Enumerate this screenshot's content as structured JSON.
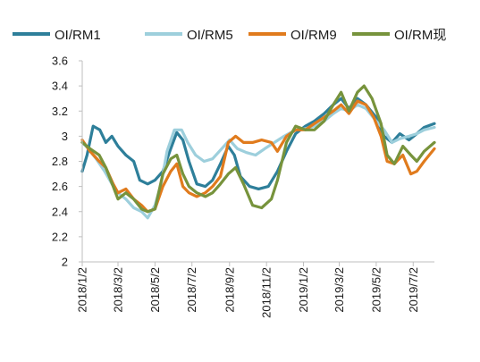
{
  "chart_data": {
    "type": "line",
    "title": "",
    "xlabel": "",
    "ylabel": "",
    "ylim": [
      2,
      3.6
    ],
    "yticks": [
      "2",
      "2.2",
      "2.4",
      "2.6",
      "2.8",
      "3",
      "3.2",
      "3.4",
      "3.6"
    ],
    "x_range": [
      "2018-01-02",
      "2019-08-06"
    ],
    "xticks": [
      {
        "label": "2018/1/2",
        "date": "2018-01-02"
      },
      {
        "label": "2018/3/2",
        "date": "2018-03-02"
      },
      {
        "label": "2018/5/2",
        "date": "2018-05-02"
      },
      {
        "label": "2018/7/2",
        "date": "2018-07-02"
      },
      {
        "label": "2018/9/2",
        "date": "2018-09-02"
      },
      {
        "label": "2018/11/2",
        "date": "2018-11-02"
      },
      {
        "label": "2019/1/2",
        "date": "2019-01-02"
      },
      {
        "label": "2019/3/2",
        "date": "2019-03-02"
      },
      {
        "label": "2019/5/2",
        "date": "2019-05-02"
      },
      {
        "label": "2019/7/2",
        "date": "2019-07-02"
      }
    ],
    "grid": false,
    "legend_position": "top",
    "series": [
      {
        "name": "OI/RM1",
        "color": "#2e7f9a",
        "points": [
          [
            "2018-01-02",
            2.72
          ],
          [
            "2018-01-10",
            2.85
          ],
          [
            "2018-01-20",
            3.08
          ],
          [
            "2018-01-31",
            3.05
          ],
          [
            "2018-02-10",
            2.95
          ],
          [
            "2018-02-20",
            3.0
          ],
          [
            "2018-03-02",
            2.92
          ],
          [
            "2018-03-15",
            2.85
          ],
          [
            "2018-03-28",
            2.8
          ],
          [
            "2018-04-07",
            2.65
          ],
          [
            "2018-04-20",
            2.62
          ],
          [
            "2018-05-02",
            2.65
          ],
          [
            "2018-05-15",
            2.72
          ],
          [
            "2018-05-28",
            2.9
          ],
          [
            "2018-06-07",
            3.03
          ],
          [
            "2018-06-17",
            2.97
          ],
          [
            "2018-06-27",
            2.8
          ],
          [
            "2018-07-10",
            2.62
          ],
          [
            "2018-07-24",
            2.6
          ],
          [
            "2018-08-05",
            2.65
          ],
          [
            "2018-08-18",
            2.78
          ],
          [
            "2018-08-31",
            2.92
          ],
          [
            "2018-09-10",
            2.85
          ],
          [
            "2018-09-20",
            2.68
          ],
          [
            "2018-10-05",
            2.6
          ],
          [
            "2018-10-20",
            2.58
          ],
          [
            "2018-11-05",
            2.6
          ],
          [
            "2018-11-20",
            2.72
          ],
          [
            "2018-12-05",
            2.88
          ],
          [
            "2018-12-20",
            3.02
          ],
          [
            "2019-01-05",
            3.08
          ],
          [
            "2019-01-20",
            3.12
          ],
          [
            "2019-02-05",
            3.18
          ],
          [
            "2019-02-20",
            3.25
          ],
          [
            "2019-03-05",
            3.3
          ],
          [
            "2019-03-18",
            3.22
          ],
          [
            "2019-04-01",
            3.3
          ],
          [
            "2019-04-15",
            3.25
          ],
          [
            "2019-05-02",
            3.15
          ],
          [
            "2019-05-15",
            3.0
          ],
          [
            "2019-05-28",
            2.95
          ],
          [
            "2019-06-10",
            3.02
          ],
          [
            "2019-06-25",
            2.97
          ],
          [
            "2019-07-08",
            3.02
          ],
          [
            "2019-07-20",
            3.07
          ],
          [
            "2019-08-06",
            3.1
          ]
        ]
      },
      {
        "name": "OI/RM5",
        "color": "#9dcfdc",
        "points": [
          [
            "2018-01-02",
            2.95
          ],
          [
            "2018-01-12",
            2.9
          ],
          [
            "2018-01-25",
            2.82
          ],
          [
            "2018-02-08",
            2.72
          ],
          [
            "2018-02-20",
            2.62
          ],
          [
            "2018-03-02",
            2.55
          ],
          [
            "2018-03-15",
            2.5
          ],
          [
            "2018-03-28",
            2.43
          ],
          [
            "2018-04-10",
            2.4
          ],
          [
            "2018-04-20",
            2.35
          ],
          [
            "2018-05-02",
            2.45
          ],
          [
            "2018-05-12",
            2.62
          ],
          [
            "2018-05-22",
            2.88
          ],
          [
            "2018-06-03",
            3.05
          ],
          [
            "2018-06-15",
            3.05
          ],
          [
            "2018-06-25",
            2.95
          ],
          [
            "2018-07-08",
            2.85
          ],
          [
            "2018-07-22",
            2.8
          ],
          [
            "2018-08-05",
            2.82
          ],
          [
            "2018-08-20",
            2.9
          ],
          [
            "2018-09-02",
            2.97
          ],
          [
            "2018-09-15",
            2.9
          ],
          [
            "2018-09-30",
            2.87
          ],
          [
            "2018-10-15",
            2.85
          ],
          [
            "2018-10-30",
            2.9
          ],
          [
            "2018-11-15",
            2.95
          ],
          [
            "2018-12-01",
            3.0
          ],
          [
            "2018-12-20",
            3.05
          ],
          [
            "2019-01-05",
            3.06
          ],
          [
            "2019-01-20",
            3.08
          ],
          [
            "2019-02-05",
            3.12
          ],
          [
            "2019-02-20",
            3.18
          ],
          [
            "2019-03-05",
            3.22
          ],
          [
            "2019-03-18",
            3.2
          ],
          [
            "2019-04-01",
            3.25
          ],
          [
            "2019-04-15",
            3.22
          ],
          [
            "2019-05-02",
            3.12
          ],
          [
            "2019-05-15",
            3.05
          ],
          [
            "2019-05-28",
            2.95
          ],
          [
            "2019-06-10",
            2.98
          ],
          [
            "2019-06-25",
            3.0
          ],
          [
            "2019-07-08",
            3.02
          ],
          [
            "2019-07-20",
            3.05
          ],
          [
            "2019-08-06",
            3.07
          ]
        ]
      },
      {
        "name": "OI/RM9",
        "color": "#e07b1d",
        "points": [
          [
            "2018-01-02",
            2.97
          ],
          [
            "2018-01-15",
            2.88
          ],
          [
            "2018-01-30",
            2.8
          ],
          [
            "2018-02-10",
            2.75
          ],
          [
            "2018-02-22",
            2.62
          ],
          [
            "2018-03-02",
            2.55
          ],
          [
            "2018-03-15",
            2.58
          ],
          [
            "2018-03-28",
            2.5
          ],
          [
            "2018-04-10",
            2.45
          ],
          [
            "2018-04-20",
            2.4
          ],
          [
            "2018-05-02",
            2.42
          ],
          [
            "2018-05-15",
            2.6
          ],
          [
            "2018-05-28",
            2.72
          ],
          [
            "2018-06-07",
            2.78
          ],
          [
            "2018-06-17",
            2.6
          ],
          [
            "2018-06-27",
            2.55
          ],
          [
            "2018-07-10",
            2.52
          ],
          [
            "2018-07-24",
            2.55
          ],
          [
            "2018-08-05",
            2.6
          ],
          [
            "2018-08-18",
            2.68
          ],
          [
            "2018-08-31",
            2.95
          ],
          [
            "2018-09-12",
            3.0
          ],
          [
            "2018-09-25",
            2.95
          ],
          [
            "2018-10-10",
            2.95
          ],
          [
            "2018-10-25",
            2.97
          ],
          [
            "2018-11-10",
            2.95
          ],
          [
            "2018-11-20",
            2.88
          ],
          [
            "2018-12-05",
            3.0
          ],
          [
            "2018-12-20",
            3.05
          ],
          [
            "2019-01-05",
            3.05
          ],
          [
            "2019-01-20",
            3.1
          ],
          [
            "2019-02-05",
            3.15
          ],
          [
            "2019-02-20",
            3.2
          ],
          [
            "2019-03-05",
            3.25
          ],
          [
            "2019-03-18",
            3.18
          ],
          [
            "2019-04-01",
            3.28
          ],
          [
            "2019-04-15",
            3.25
          ],
          [
            "2019-04-28",
            3.15
          ],
          [
            "2019-05-10",
            3.0
          ],
          [
            "2019-05-20",
            2.8
          ],
          [
            "2019-06-01",
            2.78
          ],
          [
            "2019-06-15",
            2.85
          ],
          [
            "2019-06-28",
            2.7
          ],
          [
            "2019-07-08",
            2.72
          ],
          [
            "2019-07-20",
            2.8
          ],
          [
            "2019-08-06",
            2.9
          ]
        ]
      },
      {
        "name": "OI/RM现",
        "color": "#77933c",
        "points": [
          [
            "2018-01-02",
            2.95
          ],
          [
            "2018-01-15",
            2.9
          ],
          [
            "2018-01-30",
            2.85
          ],
          [
            "2018-02-10",
            2.75
          ],
          [
            "2018-02-22",
            2.6
          ],
          [
            "2018-03-02",
            2.5
          ],
          [
            "2018-03-15",
            2.55
          ],
          [
            "2018-03-28",
            2.5
          ],
          [
            "2018-04-10",
            2.42
          ],
          [
            "2018-04-20",
            2.4
          ],
          [
            "2018-05-02",
            2.42
          ],
          [
            "2018-05-15",
            2.7
          ],
          [
            "2018-05-28",
            2.82
          ],
          [
            "2018-06-07",
            2.85
          ],
          [
            "2018-06-17",
            2.7
          ],
          [
            "2018-06-27",
            2.6
          ],
          [
            "2018-07-10",
            2.55
          ],
          [
            "2018-07-24",
            2.52
          ],
          [
            "2018-08-05",
            2.55
          ],
          [
            "2018-08-18",
            2.62
          ],
          [
            "2018-08-31",
            2.7
          ],
          [
            "2018-09-12",
            2.75
          ],
          [
            "2018-09-25",
            2.62
          ],
          [
            "2018-10-10",
            2.45
          ],
          [
            "2018-10-25",
            2.43
          ],
          [
            "2018-11-10",
            2.5
          ],
          [
            "2018-11-20",
            2.65
          ],
          [
            "2018-12-05",
            2.95
          ],
          [
            "2018-12-20",
            3.08
          ],
          [
            "2019-01-05",
            3.05
          ],
          [
            "2019-01-20",
            3.05
          ],
          [
            "2019-02-05",
            3.12
          ],
          [
            "2019-02-20",
            3.25
          ],
          [
            "2019-03-05",
            3.35
          ],
          [
            "2019-03-18",
            3.2
          ],
          [
            "2019-04-01",
            3.35
          ],
          [
            "2019-04-12",
            3.4
          ],
          [
            "2019-04-25",
            3.3
          ],
          [
            "2019-05-10",
            3.1
          ],
          [
            "2019-05-20",
            2.85
          ],
          [
            "2019-06-01",
            2.78
          ],
          [
            "2019-06-15",
            2.92
          ],
          [
            "2019-06-28",
            2.85
          ],
          [
            "2019-07-08",
            2.8
          ],
          [
            "2019-07-20",
            2.88
          ],
          [
            "2019-08-06",
            2.95
          ]
        ]
      }
    ]
  }
}
